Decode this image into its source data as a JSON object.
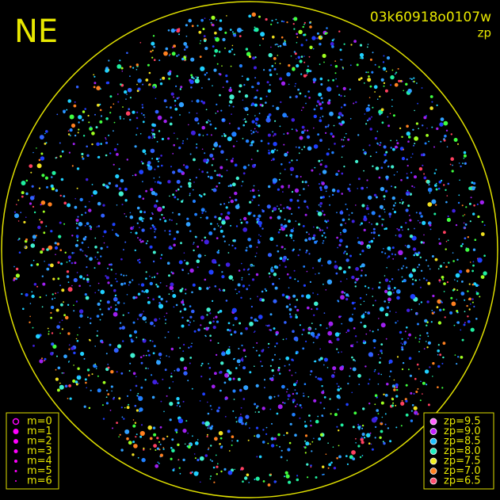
{
  "header": {
    "label": "NE",
    "id": "03k60918o0107w",
    "mode": "zp"
  },
  "legend_m": [
    "m=0",
    "m=1",
    "m=2",
    "m=3",
    "m=4",
    "m=5",
    "m=6"
  ],
  "legend_zp": [
    "zp=9.5",
    "zp=9.0",
    "zp=8.5",
    "zp=8.0",
    "zp=7.5",
    "zp=7.0",
    "zp=6.5"
  ]
}
